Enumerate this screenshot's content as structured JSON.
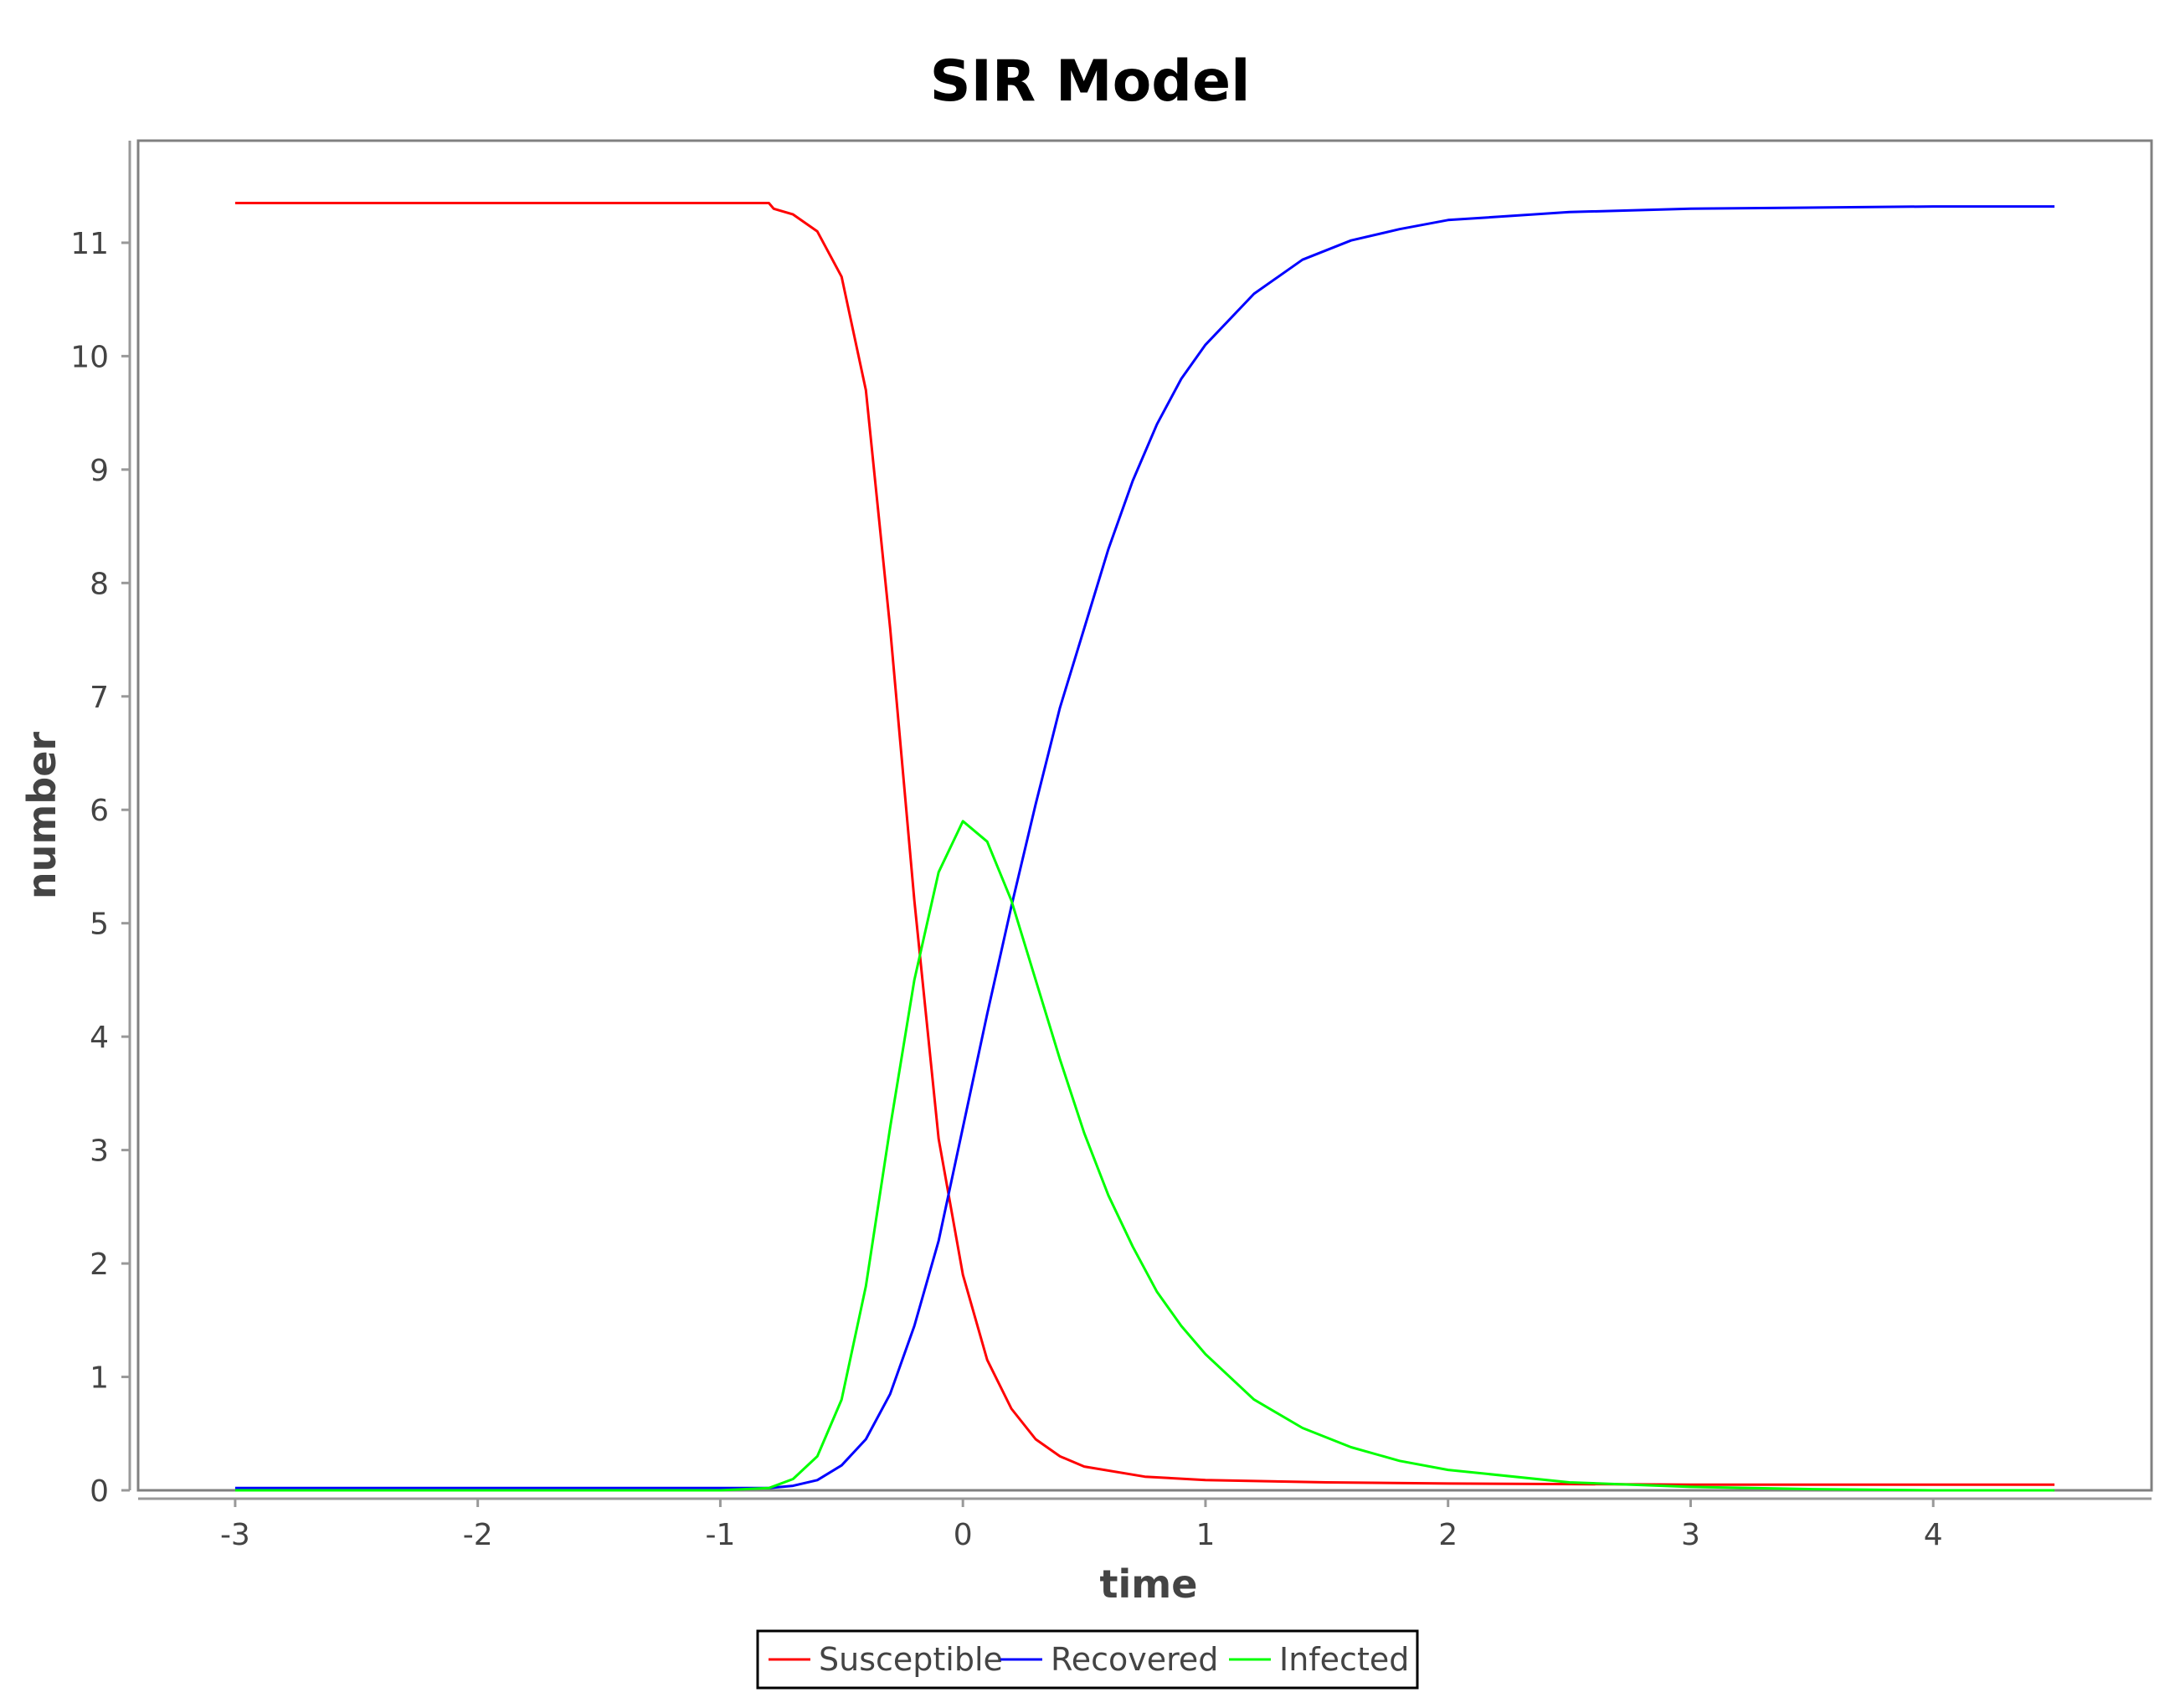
{
  "chart_data": {
    "type": "line",
    "title": "SIR Model",
    "xlabel": "time",
    "ylabel": "number",
    "xlim": [
      -3.4,
      4.9
    ],
    "ylim": [
      0,
      11.9
    ],
    "x_ticks": [
      -3,
      -2,
      -1,
      0,
      1,
      2,
      3,
      4
    ],
    "y_ticks": [
      0,
      1,
      2,
      3,
      4,
      5,
      6,
      7,
      8,
      9,
      10,
      11
    ],
    "grid": false,
    "legend_position": "bottom-center",
    "series": [
      {
        "name": "Susceptible",
        "color": "#ff0000",
        "points": [
          [
            -3.0,
            11.35
          ],
          [
            -2.0,
            11.35
          ],
          [
            -1.0,
            11.35
          ],
          [
            -0.8,
            11.35
          ],
          [
            -0.78,
            11.3
          ],
          [
            -0.7,
            11.25
          ],
          [
            -0.6,
            11.1
          ],
          [
            -0.5,
            10.7
          ],
          [
            -0.4,
            9.7
          ],
          [
            -0.3,
            7.6
          ],
          [
            -0.2,
            5.2
          ],
          [
            -0.1,
            3.1
          ],
          [
            0.0,
            1.9
          ],
          [
            0.1,
            1.15
          ],
          [
            0.2,
            0.72
          ],
          [
            0.3,
            0.45
          ],
          [
            0.4,
            0.3
          ],
          [
            0.5,
            0.21
          ],
          [
            0.75,
            0.12
          ],
          [
            1.0,
            0.09
          ],
          [
            1.5,
            0.07
          ],
          [
            2.0,
            0.06
          ],
          [
            3.0,
            0.05
          ],
          [
            4.0,
            0.05
          ],
          [
            4.5,
            0.05
          ]
        ]
      },
      {
        "name": "Recovered",
        "color": "#0000ff",
        "points": [
          [
            -3.0,
            0.02
          ],
          [
            -2.0,
            0.02
          ],
          [
            -1.0,
            0.02
          ],
          [
            -0.8,
            0.02
          ],
          [
            -0.7,
            0.04
          ],
          [
            -0.6,
            0.09
          ],
          [
            -0.5,
            0.22
          ],
          [
            -0.4,
            0.45
          ],
          [
            -0.3,
            0.85
          ],
          [
            -0.2,
            1.45
          ],
          [
            -0.1,
            2.2
          ],
          [
            0.0,
            3.2
          ],
          [
            0.1,
            4.2
          ],
          [
            0.2,
            5.15
          ],
          [
            0.3,
            6.05
          ],
          [
            0.4,
            6.9
          ],
          [
            0.5,
            7.6
          ],
          [
            0.6,
            8.3
          ],
          [
            0.7,
            8.9
          ],
          [
            0.8,
            9.4
          ],
          [
            0.9,
            9.8
          ],
          [
            1.0,
            10.1
          ],
          [
            1.2,
            10.55
          ],
          [
            1.4,
            10.85
          ],
          [
            1.6,
            11.02
          ],
          [
            1.8,
            11.12
          ],
          [
            2.0,
            11.2
          ],
          [
            2.5,
            11.27
          ],
          [
            3.0,
            11.3
          ],
          [
            4.0,
            11.32
          ],
          [
            4.5,
            11.32
          ]
        ]
      },
      {
        "name": "Infected",
        "color": "#00ff00",
        "points": [
          [
            -3.0,
            0.0
          ],
          [
            -2.0,
            0.0
          ],
          [
            -1.0,
            0.0
          ],
          [
            -0.8,
            0.02
          ],
          [
            -0.7,
            0.1
          ],
          [
            -0.6,
            0.3
          ],
          [
            -0.5,
            0.8
          ],
          [
            -0.4,
            1.8
          ],
          [
            -0.3,
            3.2
          ],
          [
            -0.2,
            4.5
          ],
          [
            -0.1,
            5.45
          ],
          [
            0.0,
            5.9
          ],
          [
            0.1,
            5.72
          ],
          [
            0.2,
            5.2
          ],
          [
            0.3,
            4.5
          ],
          [
            0.4,
            3.8
          ],
          [
            0.5,
            3.15
          ],
          [
            0.6,
            2.6
          ],
          [
            0.7,
            2.15
          ],
          [
            0.8,
            1.75
          ],
          [
            0.9,
            1.45
          ],
          [
            1.0,
            1.2
          ],
          [
            1.2,
            0.8
          ],
          [
            1.4,
            0.55
          ],
          [
            1.6,
            0.38
          ],
          [
            1.8,
            0.26
          ],
          [
            2.0,
            0.18
          ],
          [
            2.5,
            0.07
          ],
          [
            3.0,
            0.03
          ],
          [
            3.5,
            0.01
          ],
          [
            4.0,
            0.0
          ],
          [
            4.5,
            0.0
          ]
        ]
      }
    ]
  }
}
